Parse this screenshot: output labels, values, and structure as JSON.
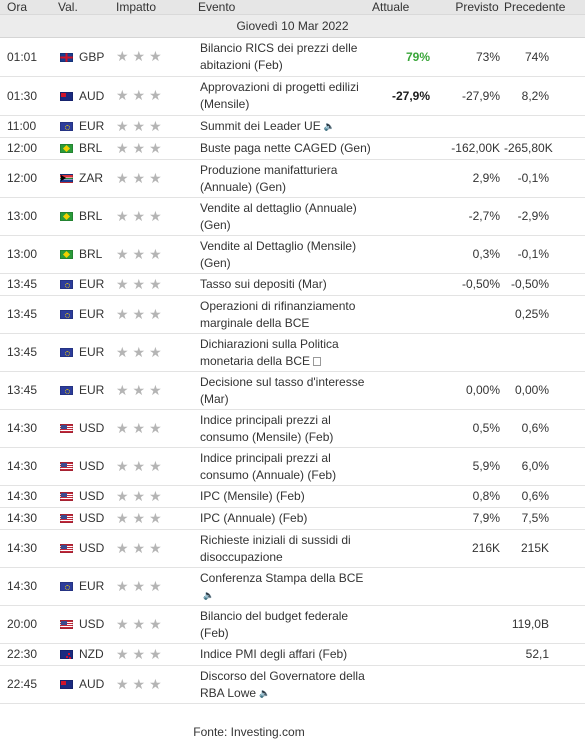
{
  "headers": {
    "time": "Ora",
    "currency": "Val.",
    "impact": "Impatto",
    "event": "Evento",
    "actual": "Attuale",
    "forecast": "Previsto",
    "previous": "Precedente"
  },
  "date_label": "Giovedì 10 Mar 2022",
  "rows": [
    {
      "time": "01:01",
      "flag": "gbp",
      "currency": "GBP",
      "stars": "★★★",
      "event": "Bilancio RICS dei prezzi delle abitazioni (Feb)",
      "icon": "",
      "actual": "79%",
      "actual_color": "green",
      "forecast": "73%",
      "previous": "74%"
    },
    {
      "time": "01:30",
      "flag": "aud",
      "currency": "AUD",
      "stars": "★★★",
      "event": "Approvazioni di progetti edilizi (Mensile)",
      "icon": "",
      "actual": "-27,9%",
      "actual_color": "dark",
      "forecast": "-27,9%",
      "previous": "8,2%"
    },
    {
      "time": "11:00",
      "flag": "eur",
      "currency": "EUR",
      "stars": "★★★",
      "event": "Summit dei Leader UE",
      "icon": "sound",
      "actual": "",
      "actual_color": "dark",
      "forecast": "",
      "previous": ""
    },
    {
      "time": "12:00",
      "flag": "brl",
      "currency": "BRL",
      "stars": "★★★",
      "event": "Buste paga nette CAGED (Gen)",
      "icon": "",
      "actual": "",
      "actual_color": "dark",
      "forecast": "-162,00K",
      "previous": "-265,80K"
    },
    {
      "time": "12:00",
      "flag": "zar",
      "currency": "ZAR",
      "stars": "★★★",
      "event": "Produzione manifatturiera (Annuale) (Gen)",
      "icon": "",
      "actual": "",
      "actual_color": "dark",
      "forecast": "2,9%",
      "previous": "-0,1%"
    },
    {
      "time": "13:00",
      "flag": "brl",
      "currency": "BRL",
      "stars": "★★★",
      "event": "Vendite al dettaglio (Annuale) (Gen)",
      "icon": "",
      "actual": "",
      "actual_color": "dark",
      "forecast": "-2,7%",
      "previous": "-2,9%"
    },
    {
      "time": "13:00",
      "flag": "brl",
      "currency": "BRL",
      "stars": "★★★",
      "event": "Vendite al Dettaglio (Mensile) (Gen)",
      "icon": "",
      "actual": "",
      "actual_color": "dark",
      "forecast": "0,3%",
      "previous": "-0,1%"
    },
    {
      "time": "13:45",
      "flag": "eur",
      "currency": "EUR",
      "stars": "★★★",
      "event": "Tasso sui depositi (Mar)",
      "icon": "",
      "actual": "",
      "actual_color": "dark",
      "forecast": "-0,50%",
      "previous": "-0,50%"
    },
    {
      "time": "13:45",
      "flag": "eur",
      "currency": "EUR",
      "stars": "★★★",
      "event": "Operazioni di rifinanziamento marginale della BCE",
      "icon": "",
      "actual": "",
      "actual_color": "dark",
      "forecast": "",
      "previous": "0,25%"
    },
    {
      "time": "13:45",
      "flag": "eur",
      "currency": "EUR",
      "stars": "★★★",
      "event": "Dichiarazioni sulla Politica monetaria della BCE",
      "icon": "doc",
      "actual": "",
      "actual_color": "dark",
      "forecast": "",
      "previous": ""
    },
    {
      "time": "13:45",
      "flag": "eur",
      "currency": "EUR",
      "stars": "★★★",
      "event": "Decisione sul tasso d'interesse (Mar)",
      "icon": "",
      "actual": "",
      "actual_color": "dark",
      "forecast": "0,00%",
      "previous": "0,00%"
    },
    {
      "time": "14:30",
      "flag": "usd",
      "currency": "USD",
      "stars": "★★★",
      "event": "Indice principali prezzi al consumo (Mensile) (Feb)",
      "icon": "",
      "actual": "",
      "actual_color": "dark",
      "forecast": "0,5%",
      "previous": "0,6%"
    },
    {
      "time": "14:30",
      "flag": "usd",
      "currency": "USD",
      "stars": "★★★",
      "event": "Indice principali prezzi al consumo (Annuale) (Feb)",
      "icon": "",
      "actual": "",
      "actual_color": "dark",
      "forecast": "5,9%",
      "previous": "6,0%"
    },
    {
      "time": "14:30",
      "flag": "usd",
      "currency": "USD",
      "stars": "★★★",
      "event": "IPC (Mensile) (Feb)",
      "icon": "",
      "actual": "",
      "actual_color": "dark",
      "forecast": "0,8%",
      "previous": "0,6%"
    },
    {
      "time": "14:30",
      "flag": "usd",
      "currency": "USD",
      "stars": "★★★",
      "event": "IPC (Annuale) (Feb)",
      "icon": "",
      "actual": "",
      "actual_color": "dark",
      "forecast": "7,9%",
      "previous": "7,5%"
    },
    {
      "time": "14:30",
      "flag": "usd",
      "currency": "USD",
      "stars": "★★★",
      "event": "Richieste iniziali di sussidi di disoccupazione",
      "icon": "",
      "actual": "",
      "actual_color": "dark",
      "forecast": "216K",
      "previous": "215K"
    },
    {
      "time": "14:30",
      "flag": "eur",
      "currency": "EUR",
      "stars": "★★★",
      "event": "Conferenza Stampa della BCE",
      "icon": "sound",
      "actual": "",
      "actual_color": "dark",
      "forecast": "",
      "previous": ""
    },
    {
      "time": "20:00",
      "flag": "usd",
      "currency": "USD",
      "stars": "★★★",
      "event": "Bilancio del budget federale (Feb)",
      "icon": "",
      "actual": "",
      "actual_color": "dark",
      "forecast": "",
      "previous": "119,0B"
    },
    {
      "time": "22:30",
      "flag": "nzd",
      "currency": "NZD",
      "stars": "★★★",
      "event": "Indice PMI degli affari (Feb)",
      "icon": "",
      "actual": "",
      "actual_color": "dark",
      "forecast": "",
      "previous": "52,1"
    },
    {
      "time": "22:45",
      "flag": "aud",
      "currency": "AUD",
      "stars": "★★★",
      "event": "Discorso del Governatore della RBA Lowe",
      "icon": "sound",
      "actual": "",
      "actual_color": "dark",
      "forecast": "",
      "previous": ""
    }
  ],
  "footer": "Fonte: Investing.com"
}
